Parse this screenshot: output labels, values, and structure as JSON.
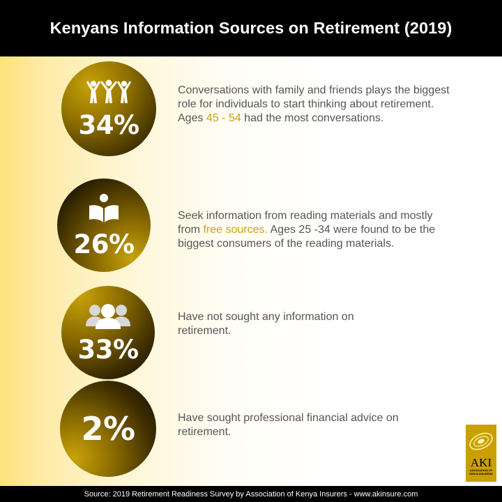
{
  "header": {
    "title": "Kenyans Information Sources on Retirement (2019)"
  },
  "stats": [
    {
      "percent": "34%",
      "icon": "family-icon",
      "text_before": "Conversations with family and friends plays the biggest role for individuals to start thinking about retirement. Ages ",
      "highlight": "45 - 54",
      "text_after": " had the most conversations."
    },
    {
      "percent": "26%",
      "icon": "reading-person-icon",
      "text_before": "Seek information from reading materials and mostly from ",
      "highlight": "free sources.",
      "text_after": " Ages 25 -34 were found to be the biggest consumers of the reading materials."
    },
    {
      "percent": "33%",
      "icon": "group-icon",
      "text_before": "Have not sought any information on retirement.",
      "highlight": "",
      "text_after": ""
    },
    {
      "percent": "2%",
      "icon": "",
      "text_before": "Have sought professional financial advice on retirement.",
      "highlight": "",
      "text_after": ""
    }
  ],
  "logo": {
    "abbr": "AKI",
    "name": "ASSOCIATION OF KENYA INSURERS"
  },
  "footer": {
    "source": "Source: 2019 Retirement Readiness Survey by  Association of Kenya Insurers - www.akinsure.com"
  },
  "colors": {
    "accent": "#c9a20a",
    "text": "#555555",
    "bar": "#000000"
  }
}
